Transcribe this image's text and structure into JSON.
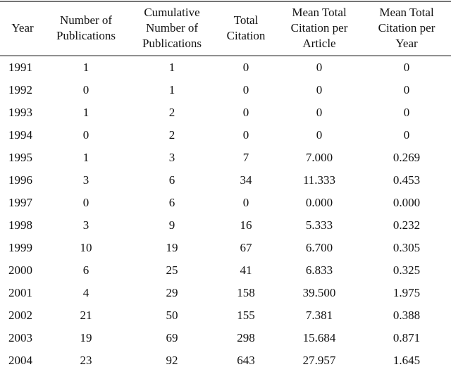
{
  "table": {
    "header": [
      [
        "Year"
      ],
      [
        "Number of",
        "Publications"
      ],
      [
        "Cumulative",
        "Number of",
        "Publications"
      ],
      [
        "Total",
        "Citation"
      ],
      [
        "Mean Total",
        "Citation per",
        "Article"
      ],
      [
        "Mean Total",
        "Citation per",
        "Year"
      ]
    ],
    "rows": [
      [
        "1991",
        "1",
        "1",
        "0",
        "0",
        "0"
      ],
      [
        "1992",
        "0",
        "1",
        "0",
        "0",
        "0"
      ],
      [
        "1993",
        "1",
        "2",
        "0",
        "0",
        "0"
      ],
      [
        "1994",
        "0",
        "2",
        "0",
        "0",
        "0"
      ],
      [
        "1995",
        "1",
        "3",
        "7",
        "7.000",
        "0.269"
      ],
      [
        "1996",
        "3",
        "6",
        "34",
        "11.333",
        "0.453"
      ],
      [
        "1997",
        "0",
        "6",
        "0",
        "0.000",
        "0.000"
      ],
      [
        "1998",
        "3",
        "9",
        "16",
        "5.333",
        "0.232"
      ],
      [
        "1999",
        "10",
        "19",
        "67",
        "6.700",
        "0.305"
      ],
      [
        "2000",
        "6",
        "25",
        "41",
        "6.833",
        "0.325"
      ],
      [
        "2001",
        "4",
        "29",
        "158",
        "39.500",
        "1.975"
      ],
      [
        "2002",
        "21",
        "50",
        "155",
        "7.381",
        "0.388"
      ],
      [
        "2003",
        "19",
        "69",
        "298",
        "15.684",
        "0.871"
      ],
      [
        "2004",
        "23",
        "92",
        "643",
        "27.957",
        "1.645"
      ]
    ]
  }
}
